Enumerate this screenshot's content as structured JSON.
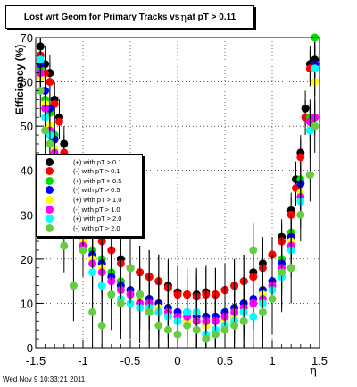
{
  "title": {
    "prefix": "Lost wrt Geom for Primary Tracks vs",
    "symbol": "η",
    "suffix": "at pT > 0.11"
  },
  "footer": "Wed Nov  9 10:33:21 2011",
  "chart_data": {
    "type": "scatter",
    "ylabel": "Efficiency (%)",
    "xlabel": "η",
    "xlim": [
      -1.5,
      1.5
    ],
    "ylim": [
      0,
      70
    ],
    "xticks": [
      "-1.5",
      "-1",
      "-0.5",
      "0",
      "0.5",
      "1",
      "1.5"
    ],
    "yticks": [
      "0",
      "10",
      "20",
      "30",
      "40",
      "50",
      "60",
      "70"
    ],
    "grid": true,
    "legend_position": "middle-left",
    "series": [
      {
        "name": "(+) with pT > 0.1",
        "color": "#000000",
        "x": [
          -1.45,
          -1.4,
          -1.35,
          -1.3,
          -1.25,
          -1.2,
          -1.1,
          -1.0,
          -0.9,
          -0.8,
          -0.7,
          -0.6,
          -0.5,
          -0.4,
          -0.3,
          -0.2,
          -0.1,
          0.0,
          0.1,
          0.2,
          0.3,
          0.4,
          0.5,
          0.6,
          0.7,
          0.8,
          0.9,
          1.0,
          1.1,
          1.2,
          1.25,
          1.3,
          1.35,
          1.4,
          1.45
        ],
        "y": [
          68,
          64,
          62,
          56,
          52,
          46,
          36,
          30,
          27,
          25,
          22,
          20,
          18,
          17,
          16,
          15,
          14,
          12.5,
          12,
          12,
          12.5,
          12,
          13,
          14,
          15,
          17,
          19,
          21,
          25,
          31,
          38,
          44,
          54,
          64,
          65
        ]
      },
      {
        "name": "(-) with pT > 0.1",
        "color": "#ff0000",
        "x": [
          -1.45,
          -1.4,
          -1.35,
          -1.3,
          -1.25,
          -1.2,
          -1.1,
          -1.0,
          -0.9,
          -0.8,
          -0.7,
          -0.6,
          -0.5,
          -0.4,
          -0.3,
          -0.2,
          -0.1,
          0.0,
          0.1,
          0.2,
          0.3,
          0.4,
          0.5,
          0.6,
          0.7,
          0.8,
          0.9,
          1.0,
          1.1,
          1.2,
          1.25,
          1.3,
          1.35,
          1.4,
          1.45
        ],
        "y": [
          66,
          62,
          60,
          55,
          51,
          44,
          35,
          29,
          26,
          24,
          22,
          19,
          18,
          17,
          16,
          15,
          13.5,
          12,
          12,
          11.5,
          12,
          12,
          13,
          14,
          15,
          16,
          18,
          21,
          24,
          30,
          36,
          43,
          52,
          63,
          64
        ]
      },
      {
        "name": "(+) with pT > 0.5",
        "color": "#00dd00",
        "x": [
          -1.45,
          -1.4,
          -1.35,
          -1.3,
          -1.2,
          -1.1,
          -1.0,
          -0.9,
          -0.8,
          -0.7,
          -0.6,
          -0.5,
          -0.4,
          -0.3,
          -0.2,
          -0.1,
          0.0,
          0.1,
          0.2,
          0.3,
          0.4,
          0.5,
          0.6,
          0.7,
          0.8,
          0.9,
          1.0,
          1.1,
          1.2,
          1.3,
          1.4,
          1.45
        ],
        "y": [
          63,
          56,
          53,
          48,
          40,
          33,
          26,
          22,
          20,
          17,
          15,
          13,
          12,
          11,
          9,
          8,
          7,
          6,
          6,
          5,
          6,
          6,
          7,
          9,
          10,
          12,
          15,
          20,
          26,
          38,
          52,
          70
        ]
      },
      {
        "name": "(-) with pT > 0.5",
        "color": "#0000ff",
        "x": [
          -1.45,
          -1.4,
          -1.35,
          -1.3,
          -1.2,
          -1.1,
          -1.0,
          -0.9,
          -0.8,
          -0.7,
          -0.6,
          -0.5,
          -0.4,
          -0.3,
          -0.2,
          -0.1,
          0.0,
          0.1,
          0.2,
          0.3,
          0.4,
          0.5,
          0.6,
          0.7,
          0.8,
          0.9,
          1.0,
          1.1,
          1.2,
          1.3,
          1.4,
          1.45
        ],
        "y": [
          64,
          58,
          54,
          47,
          38,
          31,
          25,
          21,
          19,
          16,
          14,
          13,
          12,
          11,
          10,
          9,
          8,
          8,
          7,
          7,
          7,
          8,
          9,
          10,
          11,
          13,
          15,
          19,
          25,
          37,
          51,
          64
        ]
      },
      {
        "name": "(+) with pT > 1.0",
        "color": "#ffff00",
        "x": [
          -1.45,
          -1.4,
          -1.35,
          -1.3,
          -1.2,
          -1.1,
          -1.0,
          -0.9,
          -0.8,
          -0.7,
          -0.6,
          -0.5,
          -0.4,
          -0.3,
          -0.2,
          -0.1,
          0.0,
          0.1,
          0.2,
          0.3,
          0.4,
          0.5,
          0.6,
          0.7,
          0.8,
          0.9,
          1.0,
          1.1,
          1.2,
          1.3,
          1.4,
          1.45
        ],
        "y": [
          61,
          55,
          50,
          45,
          37,
          30,
          24,
          20,
          18,
          15,
          13,
          12,
          11,
          10,
          9,
          8,
          7,
          6,
          6,
          5,
          6,
          6,
          7,
          8,
          10,
          12,
          14,
          18,
          24,
          35,
          49,
          60
        ]
      },
      {
        "name": "(-) with pT > 1.0",
        "color": "#ff00ff",
        "x": [
          -1.45,
          -1.4,
          -1.35,
          -1.3,
          -1.2,
          -1.1,
          -1.0,
          -0.9,
          -0.8,
          -0.7,
          -0.6,
          -0.5,
          -0.4,
          -0.3,
          -0.2,
          -0.1,
          0.0,
          0.1,
          0.2,
          0.3,
          0.4,
          0.5,
          0.6,
          0.7,
          0.8,
          0.9,
          1.0,
          1.1,
          1.2,
          1.3,
          1.4,
          1.45
        ],
        "y": [
          62,
          54,
          49,
          44,
          36,
          29,
          23,
          19,
          17,
          15,
          13,
          12,
          10,
          10,
          8,
          8,
          7,
          7,
          6,
          6,
          6,
          7,
          8,
          9,
          10,
          11,
          14,
          18,
          23,
          34,
          51,
          52
        ]
      },
      {
        "name": "(+) with pT > 2.0",
        "color": "#00ffff",
        "x": [
          -1.45,
          -1.4,
          -1.35,
          -1.3,
          -1.2,
          -1.1,
          -1.0,
          -0.9,
          -0.8,
          -0.7,
          -0.6,
          -0.5,
          -0.4,
          -0.3,
          -0.2,
          -0.1,
          0.0,
          0.1,
          0.2,
          0.3,
          0.4,
          0.5,
          0.6,
          0.7,
          0.8,
          0.9,
          1.0,
          1.1,
          1.2,
          1.3,
          1.4,
          1.45
        ],
        "y": [
          65,
          52,
          48,
          43,
          35,
          28,
          22,
          17,
          14,
          12,
          11,
          10,
          9,
          9,
          8,
          7,
          6,
          8,
          8,
          3,
          4,
          5,
          6,
          8,
          7,
          10,
          13,
          16,
          22,
          33,
          49,
          63
        ]
      },
      {
        "name": "(-) with pT > 2.0",
        "color": "#66cc44",
        "x": [
          -1.45,
          -1.4,
          -1.35,
          -1.3,
          -1.2,
          -1.1,
          -1.0,
          -0.9,
          -0.8,
          -0.7,
          -0.6,
          -0.5,
          -0.4,
          -0.3,
          -0.2,
          -0.1,
          0.0,
          0.1,
          0.2,
          0.3,
          0.4,
          0.5,
          0.6,
          0.7,
          0.8,
          0.9,
          1.0,
          1.1,
          1.2,
          1.3,
          1.4,
          1.45
        ],
        "y": [
          58,
          49,
          46,
          42,
          23,
          14,
          22,
          8,
          5,
          12,
          10,
          18,
          12,
          8,
          5,
          4,
          3,
          5,
          4,
          2,
          3,
          4,
          5,
          6,
          22,
          8,
          11,
          17,
          18,
          30,
          39,
          50
        ]
      }
    ]
  }
}
